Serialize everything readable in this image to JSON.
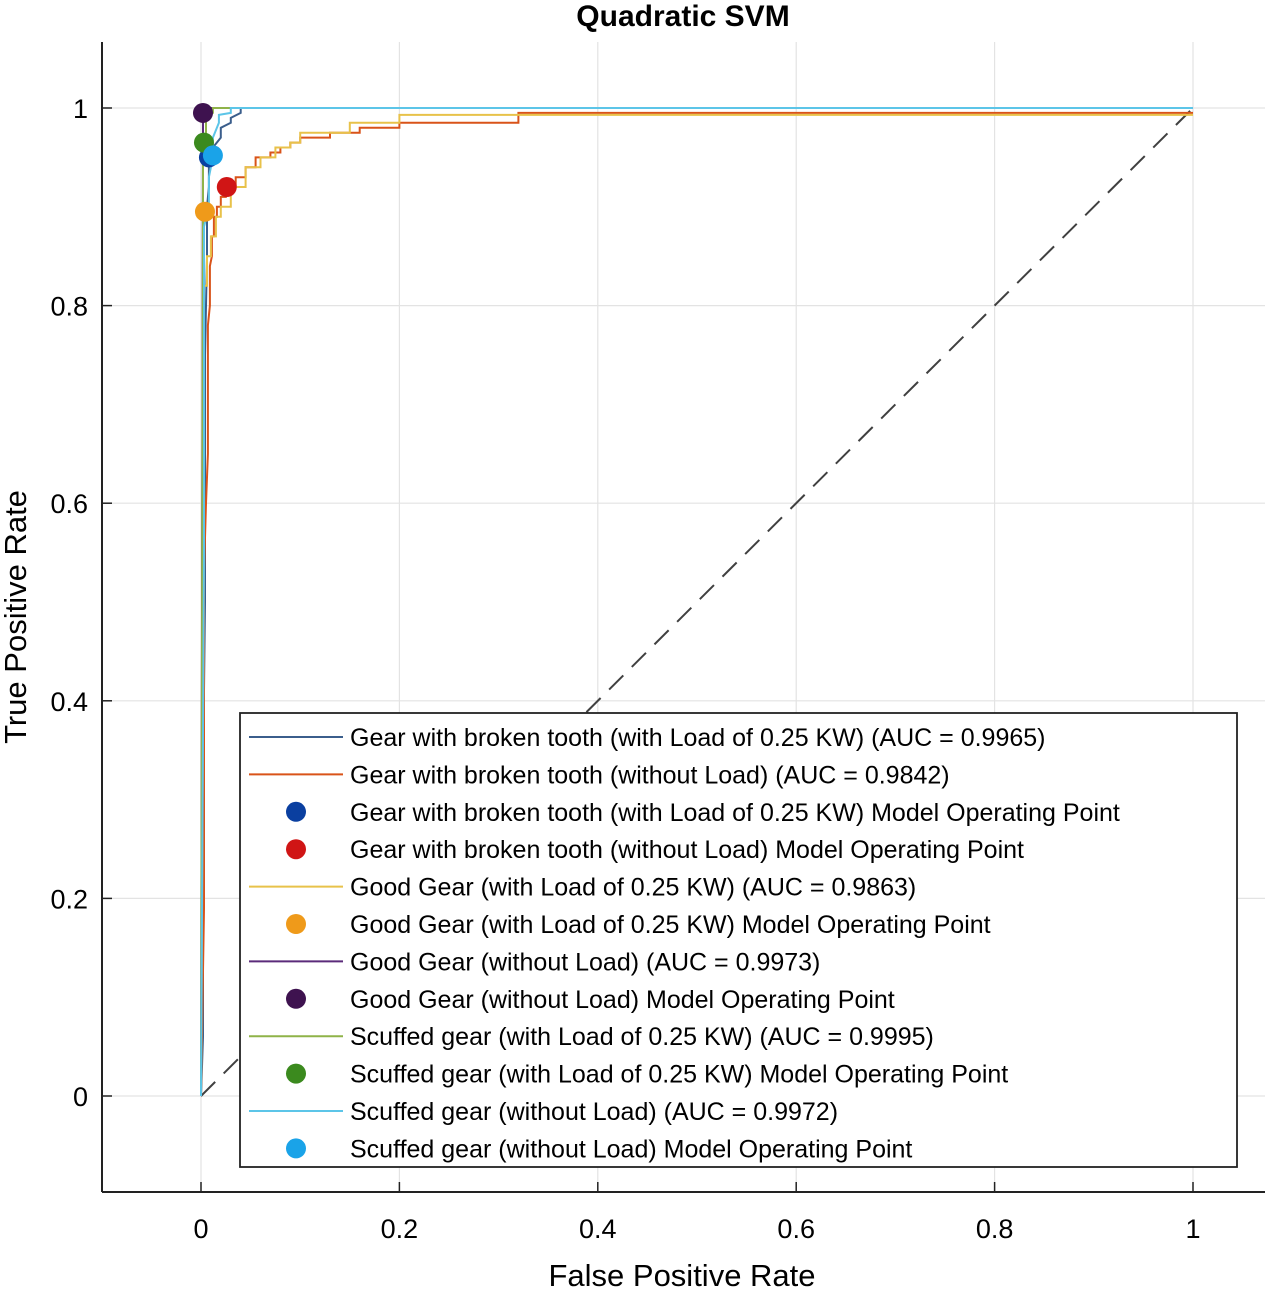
{
  "chart_data": {
    "type": "line",
    "title": "Quadratic SVM",
    "xlabel": "False Positive Rate",
    "ylabel": "True Positive Rate",
    "xlim": [
      -0.1,
      1.07
    ],
    "ylim": [
      -0.1,
      1.07
    ],
    "xticks": [
      0,
      0.2,
      0.4,
      0.6,
      0.8,
      1
    ],
    "yticks": [
      0,
      0.2,
      0.4,
      0.6,
      0.8,
      1
    ],
    "xtick_labels": [
      "0",
      "0.2",
      "0.4",
      "0.6",
      "0.8",
      "1"
    ],
    "ytick_labels": [
      "0",
      "0.2",
      "0.4",
      "0.6",
      "0.8",
      "1"
    ],
    "grid": true,
    "legend_position": "bottom-right",
    "diagonal": {
      "x": [
        0,
        1
      ],
      "y": [
        0,
        1
      ],
      "style": "dashed",
      "color": "#404040"
    },
    "series": [
      {
        "name": "Gear with broken tooth (with Load of 0.25 KW) (AUC = 0.9965)",
        "color": "#3b5e8c",
        "x": [
          0,
          0.002,
          0.002,
          0.004,
          0.004,
          0.006,
          0.006,
          0.008,
          0.008,
          0.012,
          0.012,
          0.02,
          0.02,
          0.03,
          0.03,
          0.04,
          0.04,
          1
        ],
        "y": [
          0,
          0.06,
          0.32,
          0.5,
          0.75,
          0.85,
          0.9,
          0.92,
          0.94,
          0.95,
          0.96,
          0.97,
          0.98,
          0.985,
          0.99,
          0.995,
          1,
          1
        ]
      },
      {
        "name": "Gear with broken tooth (without Load) (AUC = 0.9842)",
        "color": "#d95319",
        "x": [
          0,
          0.003,
          0.003,
          0.005,
          0.005,
          0.007,
          0.007,
          0.009,
          0.009,
          0.011,
          0.011,
          0.013,
          0.013,
          0.016,
          0.016,
          0.02,
          0.02,
          0.025,
          0.025,
          0.035,
          0.035,
          0.045,
          0.045,
          0.055,
          0.055,
          0.07,
          0.07,
          0.08,
          0.08,
          0.09,
          0.09,
          0.1,
          0.1,
          0.13,
          0.13,
          0.16,
          0.16,
          0.2,
          0.2,
          0.32,
          0.32,
          1
        ],
        "y": [
          0,
          0.19,
          0.53,
          0.6,
          0.6,
          0.65,
          0.78,
          0.8,
          0.84,
          0.85,
          0.87,
          0.87,
          0.89,
          0.89,
          0.9,
          0.9,
          0.91,
          0.91,
          0.92,
          0.92,
          0.93,
          0.93,
          0.94,
          0.94,
          0.95,
          0.95,
          0.955,
          0.955,
          0.96,
          0.96,
          0.965,
          0.965,
          0.97,
          0.97,
          0.975,
          0.975,
          0.98,
          0.98,
          0.985,
          0.985,
          0.995,
          0.995
        ]
      },
      {
        "name": "Gear with broken tooth (with Load of 0.25 KW) Model Operating Point",
        "marker": true,
        "color": "#0a3fa0",
        "x": 0.008,
        "y": 0.95
      },
      {
        "name": "Gear with broken tooth (without Load) Model Operating Point",
        "marker": true,
        "color": "#d01515",
        "x": 0.026,
        "y": 0.92
      },
      {
        "name": "Good Gear (with Load of 0.25 KW) (AUC = 0.9863)",
        "color": "#e8c24a",
        "x": [
          0,
          0.003,
          0.003,
          0.006,
          0.006,
          0.01,
          0.01,
          0.015,
          0.015,
          0.02,
          0.02,
          0.03,
          0.03,
          0.045,
          0.045,
          0.06,
          0.06,
          0.075,
          0.075,
          0.09,
          0.09,
          0.1,
          0.1,
          0.15,
          0.15,
          0.2,
          0.2,
          1
        ],
        "y": [
          0,
          0.6,
          0.82,
          0.82,
          0.85,
          0.85,
          0.87,
          0.87,
          0.89,
          0.89,
          0.9,
          0.9,
          0.92,
          0.92,
          0.94,
          0.94,
          0.95,
          0.95,
          0.96,
          0.96,
          0.965,
          0.965,
          0.975,
          0.975,
          0.985,
          0.985,
          0.993,
          0.993
        ]
      },
      {
        "name": "Good Gear (with Load of 0.25 KW) Model Operating Point",
        "marker": true,
        "color": "#ef9a1a",
        "x": 0.004,
        "y": 0.895
      },
      {
        "name": "Good Gear (without Load) (AUC = 0.9973)",
        "color": "#5b2b7a",
        "x": [
          0,
          0.002,
          0.002,
          0.004,
          0.004,
          1
        ],
        "y": [
          0,
          0.97,
          0.99,
          0.995,
          1,
          1
        ]
      },
      {
        "name": "Good Gear (without Load) Model Operating Point",
        "marker": true,
        "color": "#3e124f",
        "x": 0.002,
        "y": 0.995
      },
      {
        "name": "Scuffed gear (with Load of 0.25 KW) (AUC = 0.9995)",
        "color": "#8fb349",
        "x": [
          0,
          0.002,
          0.002,
          0.005,
          0.005,
          0.012,
          0.012,
          1
        ],
        "y": [
          0,
          0.9,
          0.95,
          0.97,
          0.99,
          0.995,
          1,
          1
        ]
      },
      {
        "name": "Scuffed gear (with Load of 0.25 KW) Model Operating Point",
        "marker": true,
        "color": "#3b8a1e",
        "x": 0.003,
        "y": 0.965
      },
      {
        "name": "Scuffed gear (without Load) (AUC = 0.9972)",
        "color": "#5cc5e8",
        "x": [
          0,
          0.003,
          0.003,
          0.008,
          0.008,
          0.012,
          0.012,
          0.018,
          0.018,
          0.03,
          0.03,
          1
        ],
        "y": [
          0,
          0.55,
          0.88,
          0.9,
          0.93,
          0.95,
          0.97,
          0.985,
          0.993,
          0.995,
          1,
          1
        ]
      },
      {
        "name": "Scuffed gear (without Load) Model Operating Point",
        "marker": true,
        "color": "#1aa3e8",
        "x": 0.012,
        "y": 0.952
      }
    ]
  }
}
